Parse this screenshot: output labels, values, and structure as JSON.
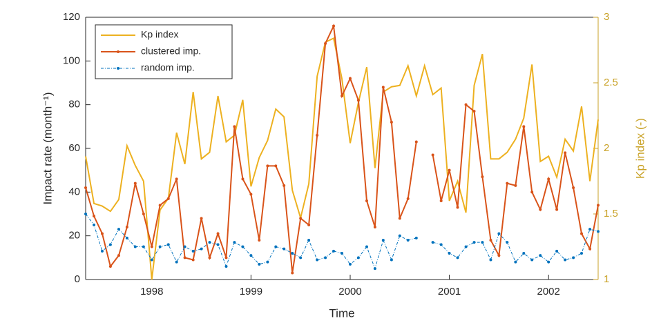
{
  "chart_data": {
    "type": "line",
    "xlabel": "Time",
    "ylabel": "Impact rate (month⁻¹)",
    "y2label": "Kp index (-)",
    "x": [
      1997.333,
      1997.417,
      1997.5,
      1997.583,
      1997.667,
      1997.75,
      1997.833,
      1997.917,
      1998,
      1998.083,
      1998.167,
      1998.25,
      1998.333,
      1998.417,
      1998.5,
      1998.583,
      1998.667,
      1998.75,
      1998.833,
      1998.917,
      1999,
      1999.083,
      1999.167,
      1999.25,
      1999.333,
      1999.417,
      1999.5,
      1999.583,
      1999.667,
      1999.75,
      1999.833,
      1999.917,
      2000,
      2000.083,
      2000.167,
      2000.25,
      2000.333,
      2000.417,
      2000.5,
      2000.583,
      2000.667,
      2000.75,
      2000.833,
      2000.917,
      2001,
      2001.083,
      2001.167,
      2001.25,
      2001.333,
      2001.417,
      2001.5,
      2001.583,
      2001.667,
      2001.75,
      2001.833,
      2001.917,
      2002,
      2002.083,
      2002.167,
      2002.25,
      2002.333,
      2002.417,
      2002.5
    ],
    "xlim": [
      1997.333,
      2002.5
    ],
    "xticks": [
      1998,
      1999,
      2000,
      2001,
      2002
    ],
    "ylim": [
      0,
      120
    ],
    "yticks": [
      0,
      20,
      40,
      60,
      80,
      100,
      120
    ],
    "y2lim": [
      1,
      3
    ],
    "y2ticks": [
      1,
      1.5,
      2,
      2.5,
      3
    ],
    "legend": "upper left",
    "series": [
      {
        "name": "Kp index",
        "color": "#EDB120",
        "axis": "y2",
        "marker": false,
        "values": [
          1.94,
          1.58,
          1.56,
          1.52,
          1.61,
          2.02,
          1.87,
          1.75,
          1.0,
          1.53,
          1.62,
          2.12,
          1.88,
          2.43,
          1.92,
          1.97,
          2.4,
          2.05,
          2.1,
          2.37,
          1.71,
          1.93,
          2.06,
          2.3,
          2.24,
          1.68,
          1.47,
          1.73,
          2.55,
          2.81,
          2.84,
          2.53,
          2.04,
          2.35,
          2.62,
          1.85,
          2.43,
          2.47,
          2.48,
          2.63,
          2.4,
          2.63,
          2.41,
          2.46,
          1.6,
          1.75,
          1.51,
          2.48,
          2.72,
          1.92,
          1.92,
          1.97,
          2.07,
          2.23,
          2.64,
          1.9,
          1.94,
          1.78,
          2.07,
          1.98,
          2.32,
          1.75,
          2.22
        ]
      },
      {
        "name": "clustered imp.",
        "color": "#D95319",
        "marker": true,
        "values": [
          42,
          29,
          21,
          6,
          11,
          24,
          44,
          30,
          15,
          34,
          37,
          46,
          10,
          9,
          28,
          10,
          21,
          10,
          70,
          46,
          39,
          18,
          52,
          52,
          43,
          3,
          28,
          25,
          66,
          108,
          116,
          84,
          92,
          82,
          36,
          24,
          88,
          72,
          28,
          37,
          63,
          null,
          57,
          36,
          50,
          33,
          80,
          77,
          47,
          18,
          11,
          44,
          43,
          70,
          40,
          32,
          46,
          32,
          58,
          42,
          21,
          14,
          34
        ]
      },
      {
        "name": "random imp.",
        "color": "#0072BD",
        "marker": true,
        "dashed": true,
        "values": [
          30,
          25,
          13,
          16,
          23,
          19,
          15,
          15,
          9,
          15,
          16,
          8,
          15,
          13,
          14,
          17,
          16,
          6,
          17,
          15,
          11,
          7,
          8,
          15,
          14,
          12,
          10,
          18,
          9,
          10,
          13,
          12,
          7,
          10,
          15,
          5,
          18,
          9,
          20,
          18,
          19,
          null,
          17,
          16,
          12,
          10,
          15,
          17,
          17,
          9,
          21,
          17,
          8,
          12,
          9,
          11,
          8,
          13,
          9,
          10,
          12,
          23,
          22
        ]
      }
    ]
  }
}
